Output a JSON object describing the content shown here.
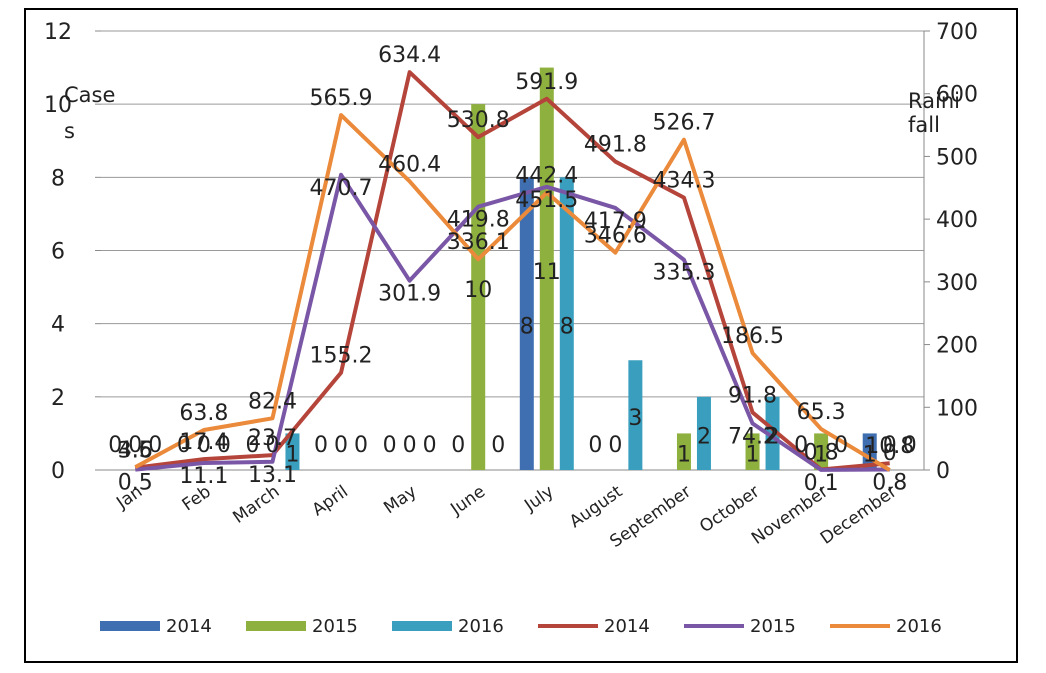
{
  "chart_data": {
    "type": "bar",
    "categories": [
      "Jan",
      "Feb",
      "March",
      "April",
      "May",
      "June",
      "July",
      "August",
      "September",
      "October",
      "November",
      "December"
    ],
    "y_left": {
      "label_line1": "Case",
      "label_line2": "s",
      "range": [
        0,
        12
      ],
      "ticks": [
        "0",
        "2",
        "4",
        "6",
        "8",
        "10",
        "12"
      ]
    },
    "y_right": {
      "label_line1": "Raini",
      "label_line2": "fall",
      "range": [
        0,
        700
      ],
      "ticks": [
        "0",
        "100",
        "200",
        "300",
        "400",
        "500",
        "600",
        "700"
      ]
    },
    "bar_series": [
      {
        "name": "2014",
        "color": "#3f6fb0",
        "values": [
          0,
          0,
          0,
          0,
          0,
          0,
          8,
          0,
          0,
          0,
          0,
          1
        ]
      },
      {
        "name": "2015",
        "color": "#8eb03f",
        "values": [
          0,
          0,
          0,
          0,
          0,
          10,
          11,
          0,
          1,
          1,
          1,
          0
        ]
      },
      {
        "name": "2016",
        "color": "#3a9fbf",
        "values": [
          0,
          0,
          1,
          0,
          0,
          0,
          8,
          3,
          2,
          2,
          0,
          0
        ]
      }
    ],
    "line_series": [
      {
        "name": "2014",
        "color": "#b5443a",
        "values": [
          3.6,
          17.4,
          23.7,
          155.2,
          634.4,
          530.8,
          591.9,
          491.8,
          434.3,
          91.8,
          0.8,
          10.8
        ]
      },
      {
        "name": "2015",
        "color": "#7a57a6",
        "values": [
          0.5,
          11.1,
          13.1,
          470.7,
          301.9,
          419.8,
          451.5,
          417.9,
          335.3,
          74.2,
          0.1,
          0.8
        ]
      },
      {
        "name": "2016",
        "color": "#ea8a3a",
        "values": [
          4.5,
          63.8,
          82.4,
          565.9,
          460.4,
          336.1,
          442.4,
          346.6,
          526.7,
          186.5,
          65.3,
          0
        ]
      }
    ],
    "bar_label_text": [
      [
        "0",
        "0",
        "0",
        "0",
        "0",
        "0",
        "8",
        "0",
        "",
        "",
        "0",
        "1"
      ],
      [
        "0",
        "0",
        "0",
        "0",
        "0",
        "10",
        "11",
        "0",
        "1",
        "1",
        "1",
        "0"
      ],
      [
        "0",
        "0",
        "1",
        "0",
        "0",
        "0",
        "8",
        "3",
        "2",
        "2",
        "0",
        "0"
      ]
    ],
    "line_label_text": [
      [
        "3.6",
        "17.4",
        "23.7",
        "155.2",
        "634.4",
        "530.8",
        "591.9",
        "491.8",
        "434.3",
        "91.8",
        "0.8",
        "10.8"
      ],
      [
        "0.5",
        "11.1",
        "13.1",
        "470.7",
        "301.9",
        "419.8",
        "451.5",
        "417.9",
        "335.3",
        "74.2",
        "0.1",
        "0.8"
      ],
      [
        "4.5",
        "63.8",
        "82.4",
        "565.9",
        "460.4",
        "336.1",
        "442.4",
        "346.6",
        "526.7",
        "186.5",
        "65.3",
        "0"
      ]
    ],
    "grid": true,
    "legend_position": "bottom"
  }
}
